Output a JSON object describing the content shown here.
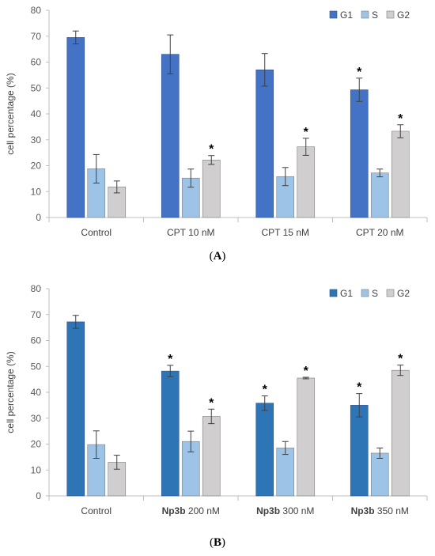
{
  "panels": {
    "a": {
      "open": "(",
      "letter": "A",
      "close": ")"
    },
    "b": {
      "open": "(",
      "letter": "B",
      "close": ")"
    }
  },
  "chart_data": [
    {
      "type": "bar",
      "ylabel": "cell percentage (%)",
      "ylim": [
        0,
        80
      ],
      "yticks": [
        0,
        10,
        20,
        30,
        40,
        50,
        60,
        70,
        80
      ],
      "grid": false,
      "legend_position": "top-right",
      "categories": [
        {
          "text": "Control"
        },
        {
          "text": "CPT 10 nM"
        },
        {
          "text": "CPT 15 nM"
        },
        {
          "text": "CPT 20 nM"
        }
      ],
      "series": [
        {
          "name": "G1",
          "color": "#4472c4",
          "values": [
            69.5,
            63,
            57,
            49.3
          ],
          "errors": [
            2.5,
            7.5,
            6.3,
            4.5
          ],
          "significant": [
            false,
            false,
            false,
            true
          ]
        },
        {
          "name": "S",
          "color": "#9dc3e6",
          "values": [
            18.8,
            15.2,
            15.8,
            17.2
          ],
          "errors": [
            5.5,
            3.5,
            3.5,
            1.5
          ],
          "significant": [
            false,
            false,
            false,
            false
          ]
        },
        {
          "name": "G2",
          "color": "#d0cece",
          "values": [
            11.8,
            22.2,
            27.3,
            33.3
          ],
          "errors": [
            2.3,
            1.7,
            3.3,
            2.5
          ],
          "significant": [
            false,
            true,
            true,
            true
          ]
        }
      ],
      "significance_marker": "*"
    },
    {
      "type": "bar",
      "ylabel": "cell percentage (%)",
      "ylim": [
        0,
        80
      ],
      "yticks": [
        0,
        10,
        20,
        30,
        40,
        50,
        60,
        70,
        80
      ],
      "grid": false,
      "legend_position": "top-right",
      "categories": [
        {
          "text": "Control"
        },
        {
          "bold": "Np3b",
          "text": " 200 nM"
        },
        {
          "bold": "Np3b",
          "text": " 300 nM"
        },
        {
          "bold": "Np3b",
          "text": " 350 nM"
        }
      ],
      "series": [
        {
          "name": "G1",
          "color": "#2e75b6",
          "values": [
            67.2,
            48.2,
            35.8,
            35
          ],
          "errors": [
            2.5,
            2.2,
            2.8,
            4.5
          ],
          "significant": [
            false,
            true,
            true,
            true
          ]
        },
        {
          "name": "S",
          "color": "#9dc3e6",
          "values": [
            19.8,
            21,
            18.5,
            16.5
          ],
          "errors": [
            5.3,
            4,
            2.5,
            2
          ],
          "significant": [
            false,
            false,
            false,
            false
          ]
        },
        {
          "name": "G2",
          "color": "#d0cece",
          "values": [
            13,
            30.7,
            45.5,
            48.5
          ],
          "errors": [
            2.7,
            2.8,
            0.3,
            2
          ],
          "significant": [
            false,
            true,
            true,
            true
          ]
        }
      ],
      "significance_marker": "*"
    }
  ]
}
